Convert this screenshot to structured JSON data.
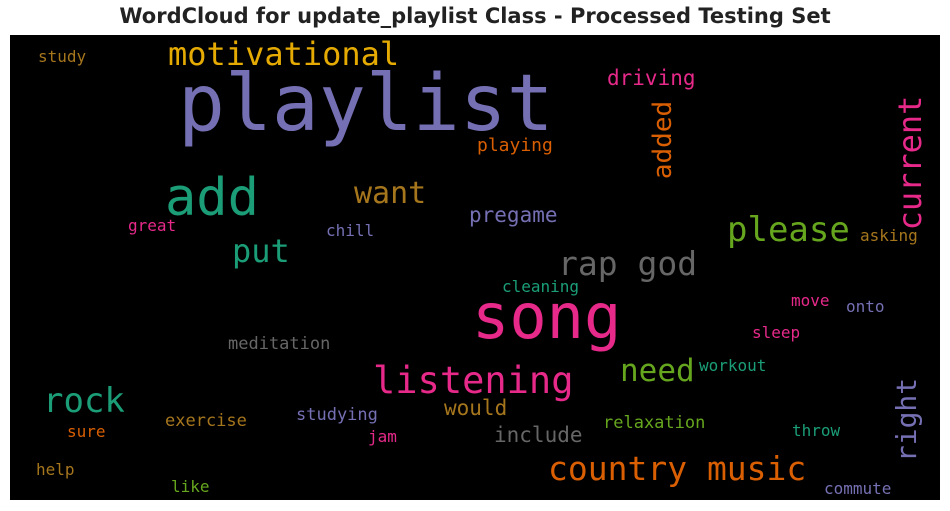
{
  "chart_title": "WordCloud for update_playlist Class - Processed Testing Set",
  "chart_data": {
    "type": "wordcloud",
    "title": "WordCloud for update_playlist Class - Processed Testing Set",
    "background": "#000000",
    "words": [
      {
        "text": "playlist",
        "color": "#7570b3"
      },
      {
        "text": "song",
        "color": "#e7298a"
      },
      {
        "text": "add",
        "color": "#1b9e77"
      },
      {
        "text": "country music",
        "color": "#d95f02"
      },
      {
        "text": "listening",
        "color": "#e7298a"
      },
      {
        "text": "motivational",
        "color": "#e6ab02"
      },
      {
        "text": "rap god",
        "color": "#666666"
      },
      {
        "text": "please",
        "color": "#66a61e"
      },
      {
        "text": "want",
        "color": "#a6761d"
      },
      {
        "text": "put",
        "color": "#1b9e77"
      },
      {
        "text": "rock",
        "color": "#1b9e77"
      },
      {
        "text": "need",
        "color": "#66a61e"
      },
      {
        "text": "current",
        "color": "#e7298a"
      },
      {
        "text": "right",
        "color": "#7570b3"
      },
      {
        "text": "added",
        "color": "#d95f02"
      },
      {
        "text": "driving",
        "color": "#e7298a"
      },
      {
        "text": "pregame",
        "color": "#7570b3"
      },
      {
        "text": "would",
        "color": "#a6761d"
      },
      {
        "text": "include",
        "color": "#666666"
      },
      {
        "text": "playing",
        "color": "#d95f02"
      },
      {
        "text": "study",
        "color": "#a6761d"
      },
      {
        "text": "great",
        "color": "#e7298a"
      },
      {
        "text": "chill",
        "color": "#7570b3"
      },
      {
        "text": "asking",
        "color": "#a6761d"
      },
      {
        "text": "cleaning",
        "color": "#1b9e77"
      },
      {
        "text": "move",
        "color": "#e7298a"
      },
      {
        "text": "onto",
        "color": "#7570b3"
      },
      {
        "text": "sleep",
        "color": "#e7298a"
      },
      {
        "text": "meditation",
        "color": "#666666"
      },
      {
        "text": "workout",
        "color": "#1b9e77"
      },
      {
        "text": "exercise",
        "color": "#a6761d"
      },
      {
        "text": "studying",
        "color": "#7570b3"
      },
      {
        "text": "relaxation",
        "color": "#66a61e"
      },
      {
        "text": "sure",
        "color": "#d95f02"
      },
      {
        "text": "jam",
        "color": "#e7298a"
      },
      {
        "text": "throw",
        "color": "#1b9e77"
      },
      {
        "text": "help",
        "color": "#a6761d"
      },
      {
        "text": "like",
        "color": "#66a61e"
      },
      {
        "text": "commute",
        "color": "#7570b3"
      }
    ]
  }
}
